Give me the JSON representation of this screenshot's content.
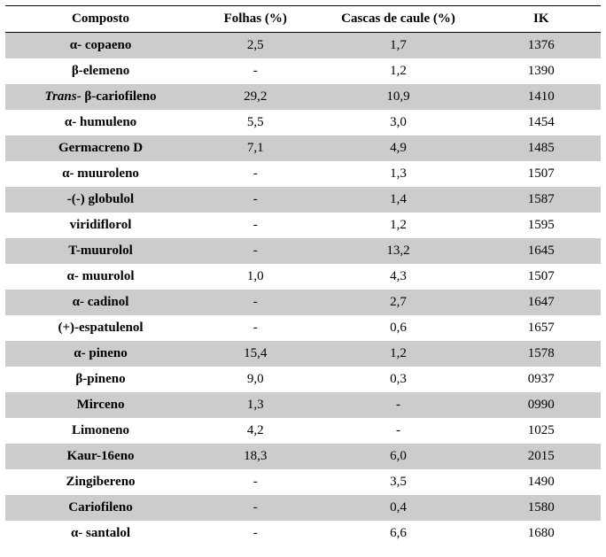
{
  "table": {
    "headers": {
      "c0": "Composto",
      "c1": "Folhas (%)",
      "c2": "Cascas de caule (%)",
      "c3": "IK"
    },
    "rows": [
      {
        "compound_prefix": "",
        "compound_italic": "",
        "compound_rest": "α- copaeno",
        "folhas": "2,5",
        "cascas": "1,7",
        "ik": "1376"
      },
      {
        "compound_prefix": "",
        "compound_italic": "",
        "compound_rest": "β-elemeno",
        "folhas": "-",
        "cascas": "1,2",
        "ik": "1390"
      },
      {
        "compound_prefix": "",
        "compound_italic": "Trans",
        "compound_rest": "- β-cariofileno",
        "folhas": "29,2",
        "cascas": "10,9",
        "ik": "1410"
      },
      {
        "compound_prefix": "",
        "compound_italic": "",
        "compound_rest": "α- humuleno",
        "folhas": "5,5",
        "cascas": "3,0",
        "ik": "1454"
      },
      {
        "compound_prefix": "",
        "compound_italic": "",
        "compound_rest": "Germacreno D",
        "folhas": "7,1",
        "cascas": "4,9",
        "ik": "1485"
      },
      {
        "compound_prefix": "",
        "compound_italic": "",
        "compound_rest": "α- muuroleno",
        "folhas": "-",
        "cascas": "1,3",
        "ik": "1507"
      },
      {
        "compound_prefix": "",
        "compound_italic": "",
        "compound_rest": "-(-) globulol",
        "folhas": "-",
        "cascas": "1,4",
        "ik": "1587"
      },
      {
        "compound_prefix": "",
        "compound_italic": "",
        "compound_rest": "viridiflorol",
        "folhas": "-",
        "cascas": "1,2",
        "ik": "1595"
      },
      {
        "compound_prefix": "",
        "compound_italic": "",
        "compound_rest": "T-muurolol",
        "folhas": "-",
        "cascas": "13,2",
        "ik": "1645"
      },
      {
        "compound_prefix": "",
        "compound_italic": "",
        "compound_rest": "α- muurolol",
        "folhas": "1,0",
        "cascas": "4,3",
        "ik": "1507"
      },
      {
        "compound_prefix": "",
        "compound_italic": "",
        "compound_rest": "α- cadinol",
        "folhas": "-",
        "cascas": "2,7",
        "ik": "1647"
      },
      {
        "compound_prefix": "",
        "compound_italic": "",
        "compound_rest": "(+)-espatulenol",
        "folhas": "-",
        "cascas": "0,6",
        "ik": "1657"
      },
      {
        "compound_prefix": "",
        "compound_italic": "",
        "compound_rest": "α- pineno",
        "folhas": "15,4",
        "cascas": "1,2",
        "ik": "1578"
      },
      {
        "compound_prefix": "",
        "compound_italic": "",
        "compound_rest": "β-pineno",
        "folhas": "9,0",
        "cascas": "0,3",
        "ik": "0937"
      },
      {
        "compound_prefix": "",
        "compound_italic": "",
        "compound_rest": "Mirceno",
        "folhas": "1,3",
        "cascas": "-",
        "ik": "0990"
      },
      {
        "compound_prefix": "",
        "compound_italic": "",
        "compound_rest": "Limoneno",
        "folhas": "4,2",
        "cascas": "-",
        "ik": "1025"
      },
      {
        "compound_prefix": "",
        "compound_italic": "",
        "compound_rest": "Kaur-16eno",
        "folhas": "18,3",
        "cascas": "6,0",
        "ik": "2015"
      },
      {
        "compound_prefix": "",
        "compound_italic": "",
        "compound_rest": "Zingibereno",
        "folhas": "-",
        "cascas": "3,5",
        "ik": "1490"
      },
      {
        "compound_prefix": "",
        "compound_italic": "",
        "compound_rest": "Cariofileno",
        "folhas": "-",
        "cascas": "0,4",
        "ik": "1580"
      },
      {
        "compound_prefix": "",
        "compound_italic": "",
        "compound_rest": "α- santalol",
        "folhas": "-",
        "cascas": "6,6",
        "ik": "1680"
      }
    ],
    "style": {
      "stripe_even_bg": "#cccccc",
      "stripe_odd_bg": "#ffffff",
      "border_color": "#000000",
      "font_family": "Times New Roman",
      "header_fontsize": 15,
      "cell_fontsize": 15,
      "column_widths_percent": [
        32,
        20,
        28,
        20
      ]
    }
  }
}
